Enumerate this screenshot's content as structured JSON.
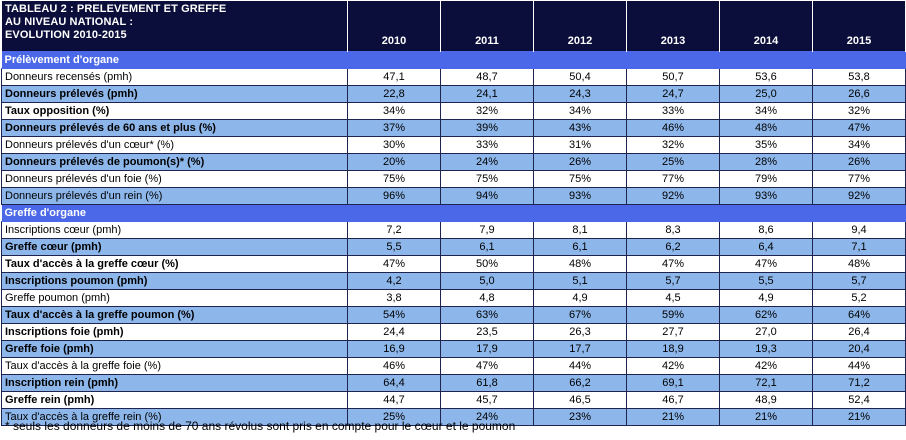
{
  "table": {
    "title_lines": [
      "TABLEAU 2 : PRELEVEMENT ET GREFFE",
      "AU NIVEAU NATIONAL :",
      "EVOLUTION 2010-2015"
    ],
    "years": [
      "2010",
      "2011",
      "2012",
      "2013",
      "2014",
      "2015"
    ],
    "sections": [
      {
        "title": "Prélèvement d'organe",
        "rows": [
          {
            "label": "Donneurs recensés (pmh)",
            "values": [
              "47,1",
              "48,7",
              "50,4",
              "50,7",
              "53,6",
              "53,8"
            ],
            "bold": false
          },
          {
            "label": "Donneurs prélevés (pmh)",
            "values": [
              "22,8",
              "24,1",
              "24,3",
              "24,7",
              "25,0",
              "26,6"
            ],
            "bold": true
          },
          {
            "label": "Taux opposition (%)",
            "values": [
              "34%",
              "32%",
              "34%",
              "33%",
              "34%",
              "32%"
            ],
            "bold": true
          },
          {
            "label": "Donneurs prélevés de 60 ans et plus (%)",
            "values": [
              "37%",
              "39%",
              "43%",
              "46%",
              "48%",
              "47%"
            ],
            "bold": true
          },
          {
            "label": "Donneurs prélevés d'un cœur* (%)",
            "values": [
              "30%",
              "33%",
              "31%",
              "32%",
              "35%",
              "34%"
            ],
            "bold": false
          },
          {
            "label": "Donneurs prélevés de poumon(s)* (%)",
            "values": [
              "20%",
              "24%",
              "26%",
              "25%",
              "28%",
              "26%"
            ],
            "bold": true
          },
          {
            "label": "Donneurs prélevés d'un foie (%)",
            "values": [
              "75%",
              "75%",
              "75%",
              "77%",
              "79%",
              "77%"
            ],
            "bold": false
          },
          {
            "label": "Donneurs prélevés d'un rein (%)",
            "values": [
              "96%",
              "94%",
              "93%",
              "92%",
              "93%",
              "92%"
            ],
            "bold": false
          }
        ]
      },
      {
        "title": "Greffe d'organe",
        "rows": [
          {
            "label": "Inscriptions cœur (pmh)",
            "values": [
              "7,2",
              "7,9",
              "8,1",
              "8,3",
              "8,6",
              "9,4"
            ],
            "bold": false
          },
          {
            "label": "Greffe cœur (pmh)",
            "values": [
              "5,5",
              "6,1",
              "6,1",
              "6,2",
              "6,4",
              "7,1"
            ],
            "bold": true
          },
          {
            "label": "Taux d'accès à la greffe cœur (%)",
            "values": [
              "47%",
              "50%",
              "48%",
              "47%",
              "47%",
              "48%"
            ],
            "bold": true
          },
          {
            "label": "Inscriptions poumon (pmh)",
            "values": [
              "4,2",
              "5,0",
              "5,1",
              "5,7",
              "5,5",
              "5,7"
            ],
            "bold": true
          },
          {
            "label": "Greffe poumon (pmh)",
            "values": [
              "3,8",
              "4,8",
              "4,9",
              "4,5",
              "4,9",
              "5,2"
            ],
            "bold": false
          },
          {
            "label": "Taux d'accès à la greffe poumon (%)",
            "values": [
              "54%",
              "63%",
              "67%",
              "59%",
              "62%",
              "64%"
            ],
            "bold": true
          },
          {
            "label": "Inscriptions foie (pmh)",
            "values": [
              "24,4",
              "23,5",
              "26,3",
              "27,7",
              "27,0",
              "26,4"
            ],
            "bold": true
          },
          {
            "label": "Greffe foie (pmh)",
            "values": [
              "16,9",
              "17,9",
              "17,7",
              "18,9",
              "19,3",
              "20,4"
            ],
            "bold": true
          },
          {
            "label": "Taux d'accès à la greffe foie (%)",
            "values": [
              "46%",
              "47%",
              "44%",
              "42%",
              "42%",
              "44%"
            ],
            "bold": false
          },
          {
            "label": "Inscription rein (pmh)",
            "values": [
              "64,4",
              "61,8",
              "66,2",
              "69,1",
              "72,1",
              "71,2"
            ],
            "bold": true
          },
          {
            "label": "Greffe rein (pmh)",
            "values": [
              "44,7",
              "45,7",
              "46,5",
              "46,7",
              "48,9",
              "52,4"
            ],
            "bold": true
          },
          {
            "label": "Taux d'accès à la greffe rein (%)",
            "values": [
              "25%",
              "24%",
              "23%",
              "21%",
              "21%",
              "21%"
            ],
            "bold": false
          }
        ]
      }
    ]
  },
  "footnote": "* seuls les donneurs de moins de 70 ans révolus sont pris en compte pour le cœur et le poumon",
  "colors": {
    "header_bg": "#0b0e3a",
    "section_bg": "#4a68e8",
    "band_bg": "#8db6ea",
    "plain_bg": "#ffffff"
  }
}
